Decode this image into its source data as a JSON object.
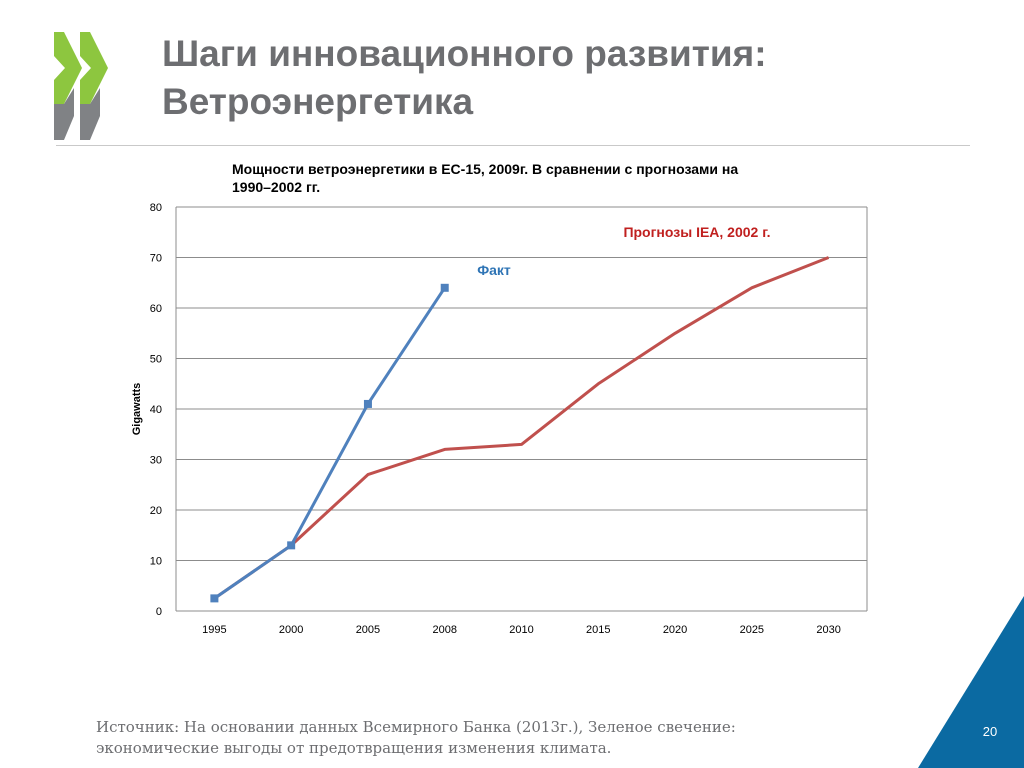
{
  "slide": {
    "title_lines": [
      "Шаги инновационного развития:",
      "Ветроэнергетика"
    ],
    "source_lines": [
      "Источник: На основании данных Всемирного Банка (2013г.), Зеленое свечение:",
      "экономические выгоды от предотвращения изменения климата."
    ],
    "page_number": "20",
    "colors": {
      "title": "#6d6e71",
      "accent_green": "#8dc63f",
      "accent_gray": "#808285",
      "corner_blue": "#0b6aa2"
    }
  },
  "chart_data": {
    "type": "line",
    "title_lines": [
      "Мощности ветроэнергетики в ЕС-15, 2009г. В сравнении с прогнозами на",
      "1990–2002 гг."
    ],
    "ylabel": "Gigawatts",
    "xlabel": "",
    "categories": [
      "1995",
      "2000",
      "2005",
      "2008",
      "2010",
      "2015",
      "2020",
      "2025",
      "2030"
    ],
    "ylim": [
      0,
      80
    ],
    "yticks": [
      0,
      10,
      20,
      30,
      40,
      50,
      60,
      70,
      80
    ],
    "grid": true,
    "series": [
      {
        "name": "Прогнозы IEA, 2002 г.",
        "color": "#c0504d",
        "markers": false,
        "values": [
          2.5,
          13,
          27,
          32,
          33,
          45,
          55,
          64,
          70
        ]
      },
      {
        "name": "Факт",
        "color": "#4f81bd",
        "markers": true,
        "values": [
          2.5,
          13,
          41,
          64,
          null,
          null,
          null,
          null,
          null
        ]
      }
    ]
  }
}
